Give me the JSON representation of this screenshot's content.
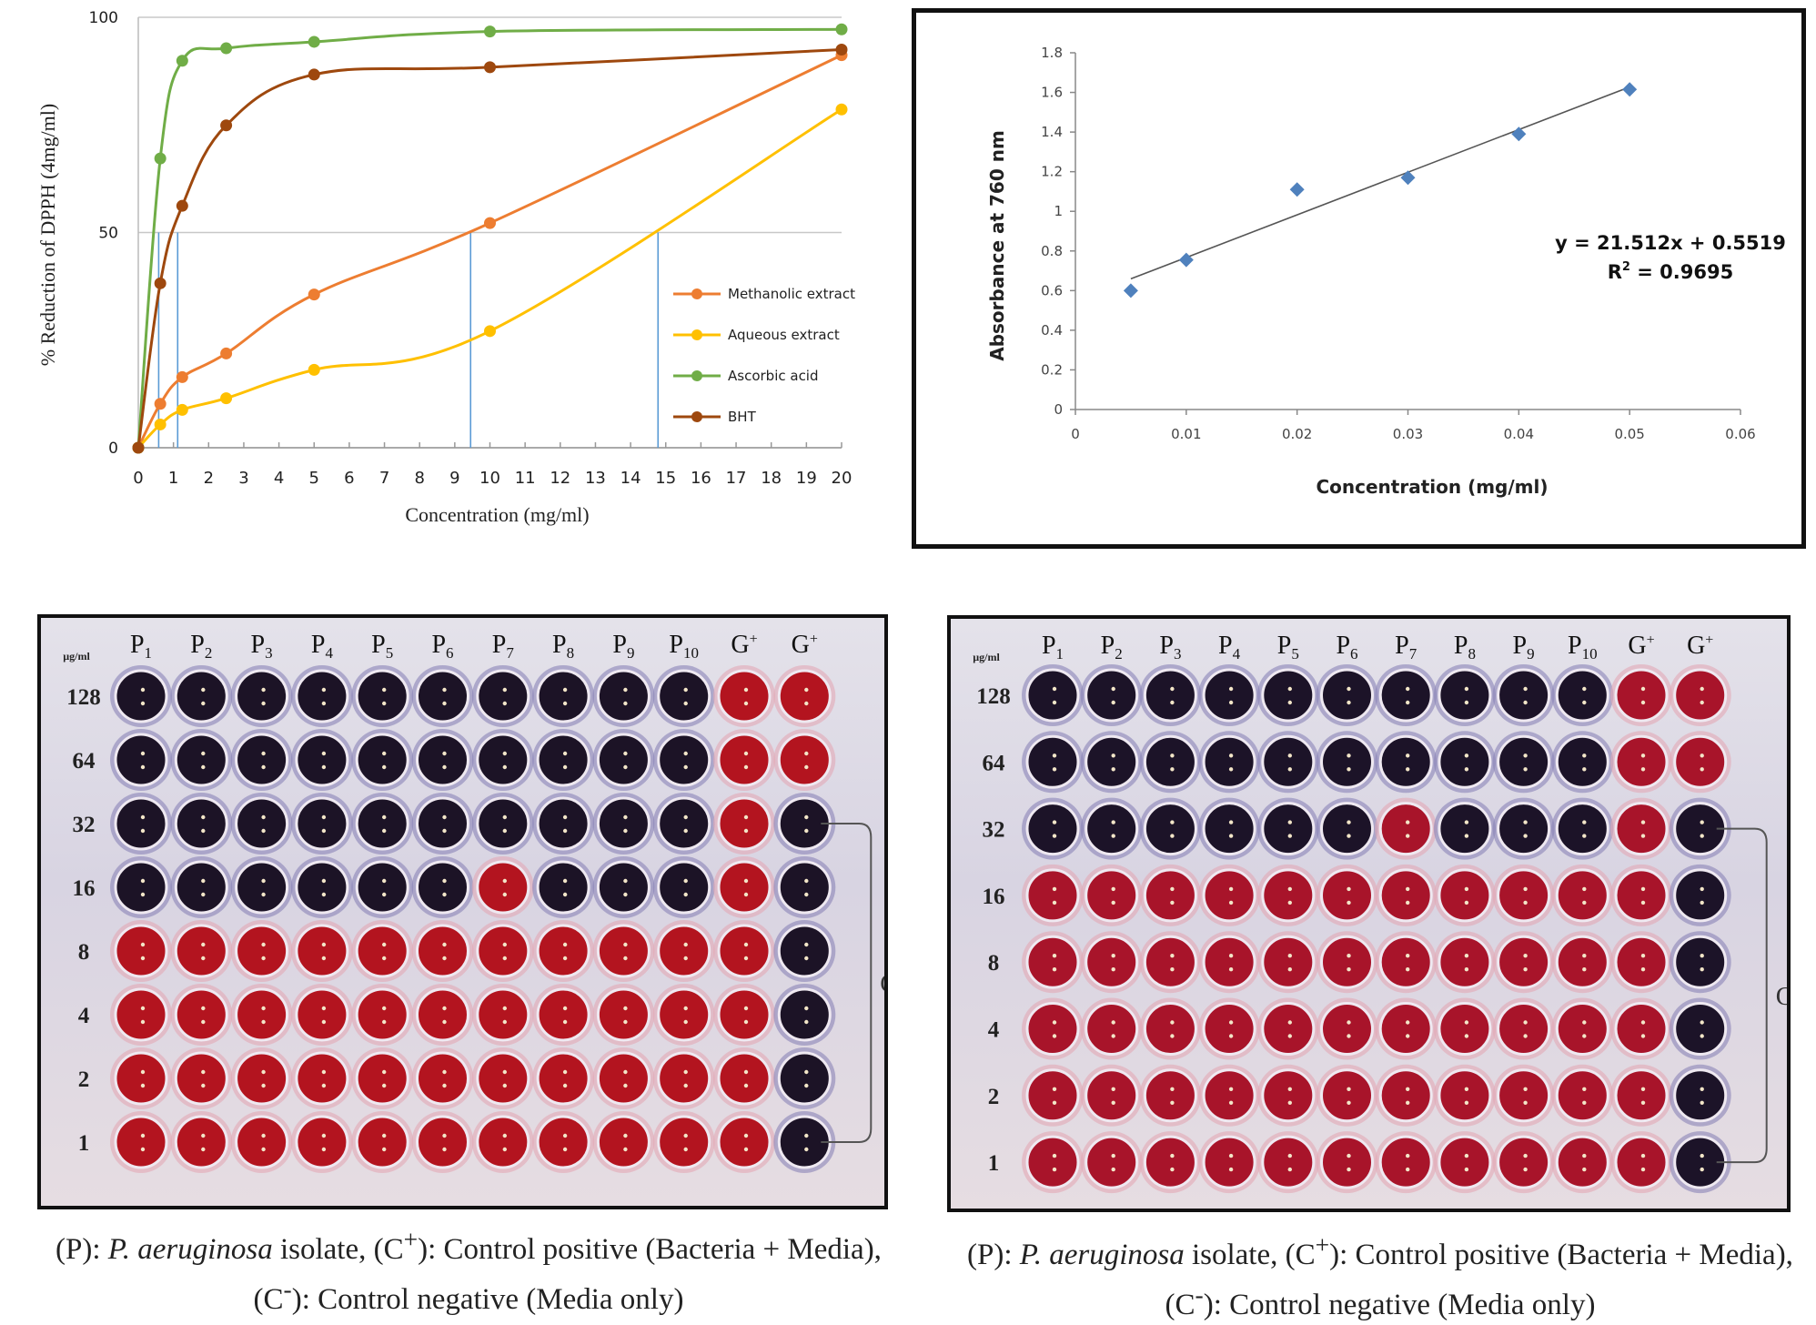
{
  "chart_data": [
    {
      "type": "line",
      "title": "",
      "xlabel": "Concentration (mg/ml)",
      "ylabel": "% Reduction of DPPH (4mg/ml)",
      "xlim": [
        0,
        20
      ],
      "ylim": [
        0,
        100
      ],
      "x_ticks": [
        "0",
        "1",
        "2",
        "3",
        "4",
        "5",
        "6",
        "7",
        "8",
        "9",
        "10",
        "11",
        "12",
        "13",
        "14",
        "15",
        "16",
        "17",
        "18",
        "19",
        "20"
      ],
      "y_ticks": [
        "0",
        "50",
        "100"
      ],
      "grid": "horizontal",
      "legend": "right",
      "x": [
        0,
        0.625,
        1.25,
        2.5,
        5,
        10,
        20
      ],
      "series": [
        {
          "name": "Methanolic extract",
          "color": "#ed7d31",
          "values": [
            0,
            10.2,
            16.4,
            21.9,
            35.6,
            52.2,
            91.2
          ]
        },
        {
          "name": "Aqueous extract",
          "color": "#ffc000",
          "values": [
            0,
            5.4,
            8.8,
            11.5,
            18.1,
            27.1,
            78.6
          ]
        },
        {
          "name": "Ascorbic acid",
          "color": "#70ad47",
          "values": [
            0,
            67.2,
            89.9,
            92.8,
            94.3,
            96.7,
            97.2
          ]
        },
        {
          "name": "BHT",
          "color": "#9e480e",
          "values": [
            0,
            38.2,
            56.2,
            74.9,
            86.7,
            88.4,
            92.5
          ]
        }
      ],
      "ic50_reference_lines": {
        "color": "#5b9bd5",
        "y": 50,
        "x": [
          0.58,
          1.12,
          9.45,
          14.78
        ]
      }
    },
    {
      "type": "scatter",
      "title": "",
      "xlabel": "Concentration (mg/ml)",
      "ylabel": "Absorbance at 760 nm",
      "xlim": [
        0,
        0.06
      ],
      "ylim": [
        0,
        1.8
      ],
      "x_ticks": [
        "0",
        "0.01",
        "0.02",
        "0.03",
        "0.04",
        "0.05",
        "0.06"
      ],
      "y_ticks": [
        "0",
        "0.2",
        "0.4",
        "0.6",
        "0.8",
        "1",
        "1.2",
        "1.4",
        "1.6",
        "1.8"
      ],
      "grid": "none",
      "marker_color": "#4f81bd",
      "x": [
        0.005,
        0.01,
        0.02,
        0.03,
        0.04,
        0.05
      ],
      "y": [
        0.6,
        0.755,
        1.11,
        1.17,
        1.39,
        1.615
      ],
      "trendline": {
        "slope": 21.512,
        "intercept": 0.5519,
        "equation": "y = 21.512x + 0.5519",
        "r2_label": "R",
        "r2_sup": "2",
        "r2_value": " = 0.9695"
      }
    }
  ],
  "plates": [
    {
      "unit_label": "µg/ml",
      "columns": [
        [
          "P",
          "1"
        ],
        [
          "P",
          "2"
        ],
        [
          "P",
          "3"
        ],
        [
          "P",
          "4"
        ],
        [
          "P",
          "5"
        ],
        [
          "P",
          "6"
        ],
        [
          "P",
          "7"
        ],
        [
          "P",
          "8"
        ],
        [
          "P",
          "9"
        ],
        [
          "P",
          "10"
        ],
        [
          "G",
          "+"
        ],
        [
          "G",
          "+"
        ]
      ],
      "rows": [
        "128",
        "64",
        "32",
        "16",
        "8",
        "4",
        "2",
        "1"
      ],
      "bracket_label": "G",
      "wells": [
        "BBBBBBBBBBRR",
        "BBBBBBBBBBRR",
        "BBBBBBBBBBRB",
        "BBBBBBRBBBRB",
        "RRRRRRRRRRRB",
        "RRRRRRRRRRRB",
        "RRRRRRRRRRRB",
        "RRRRRRRRRRRB"
      ],
      "well_colors": {
        "B": "#1c1326",
        "R": "#b3141f"
      },
      "caption": {
        "l1a": "(P): ",
        "l1b": "P. aeruginosa",
        "l1c": " isolate, (C",
        "l1d": "+",
        "l1e": "): Control positive (Bacteria + Media),",
        "l2a": "(C",
        "l2b": "-",
        "l2c": "): Control negative (Media only)"
      }
    },
    {
      "unit_label": "µg/ml",
      "columns": [
        [
          "P",
          "1"
        ],
        [
          "P",
          "2"
        ],
        [
          "P",
          "3"
        ],
        [
          "P",
          "4"
        ],
        [
          "P",
          "5"
        ],
        [
          "P",
          "6"
        ],
        [
          "P",
          "7"
        ],
        [
          "P",
          "8"
        ],
        [
          "P",
          "9"
        ],
        [
          "P",
          "10"
        ],
        [
          "G",
          "+"
        ],
        [
          "G",
          "+"
        ]
      ],
      "rows": [
        "128",
        "64",
        "32",
        "16",
        "8",
        "4",
        "2",
        "1"
      ],
      "bracket_label": "G",
      "wells": [
        "BBBBBBBBBBRR",
        "BBBBBBBBBBRR",
        "BBBBBBRBBBRB",
        "RRRRRRRRRRRB",
        "RRRRRRRRRRRB",
        "RRRRRRRRRRRB",
        "RRRRRRRRRRRB",
        "RRRRRRRRRRRB"
      ],
      "well_colors": {
        "B": "#1c1328",
        "R": "#a8142a"
      },
      "caption": {
        "l1a": "(P): ",
        "l1b": "P. aeruginosa",
        "l1c": " isolate, (C",
        "l1d": "+",
        "l1e": "): Control positive (Bacteria + Media),",
        "l2a": "(C",
        "l2b": "-",
        "l2c": "): Control negative (Media only)"
      }
    }
  ]
}
